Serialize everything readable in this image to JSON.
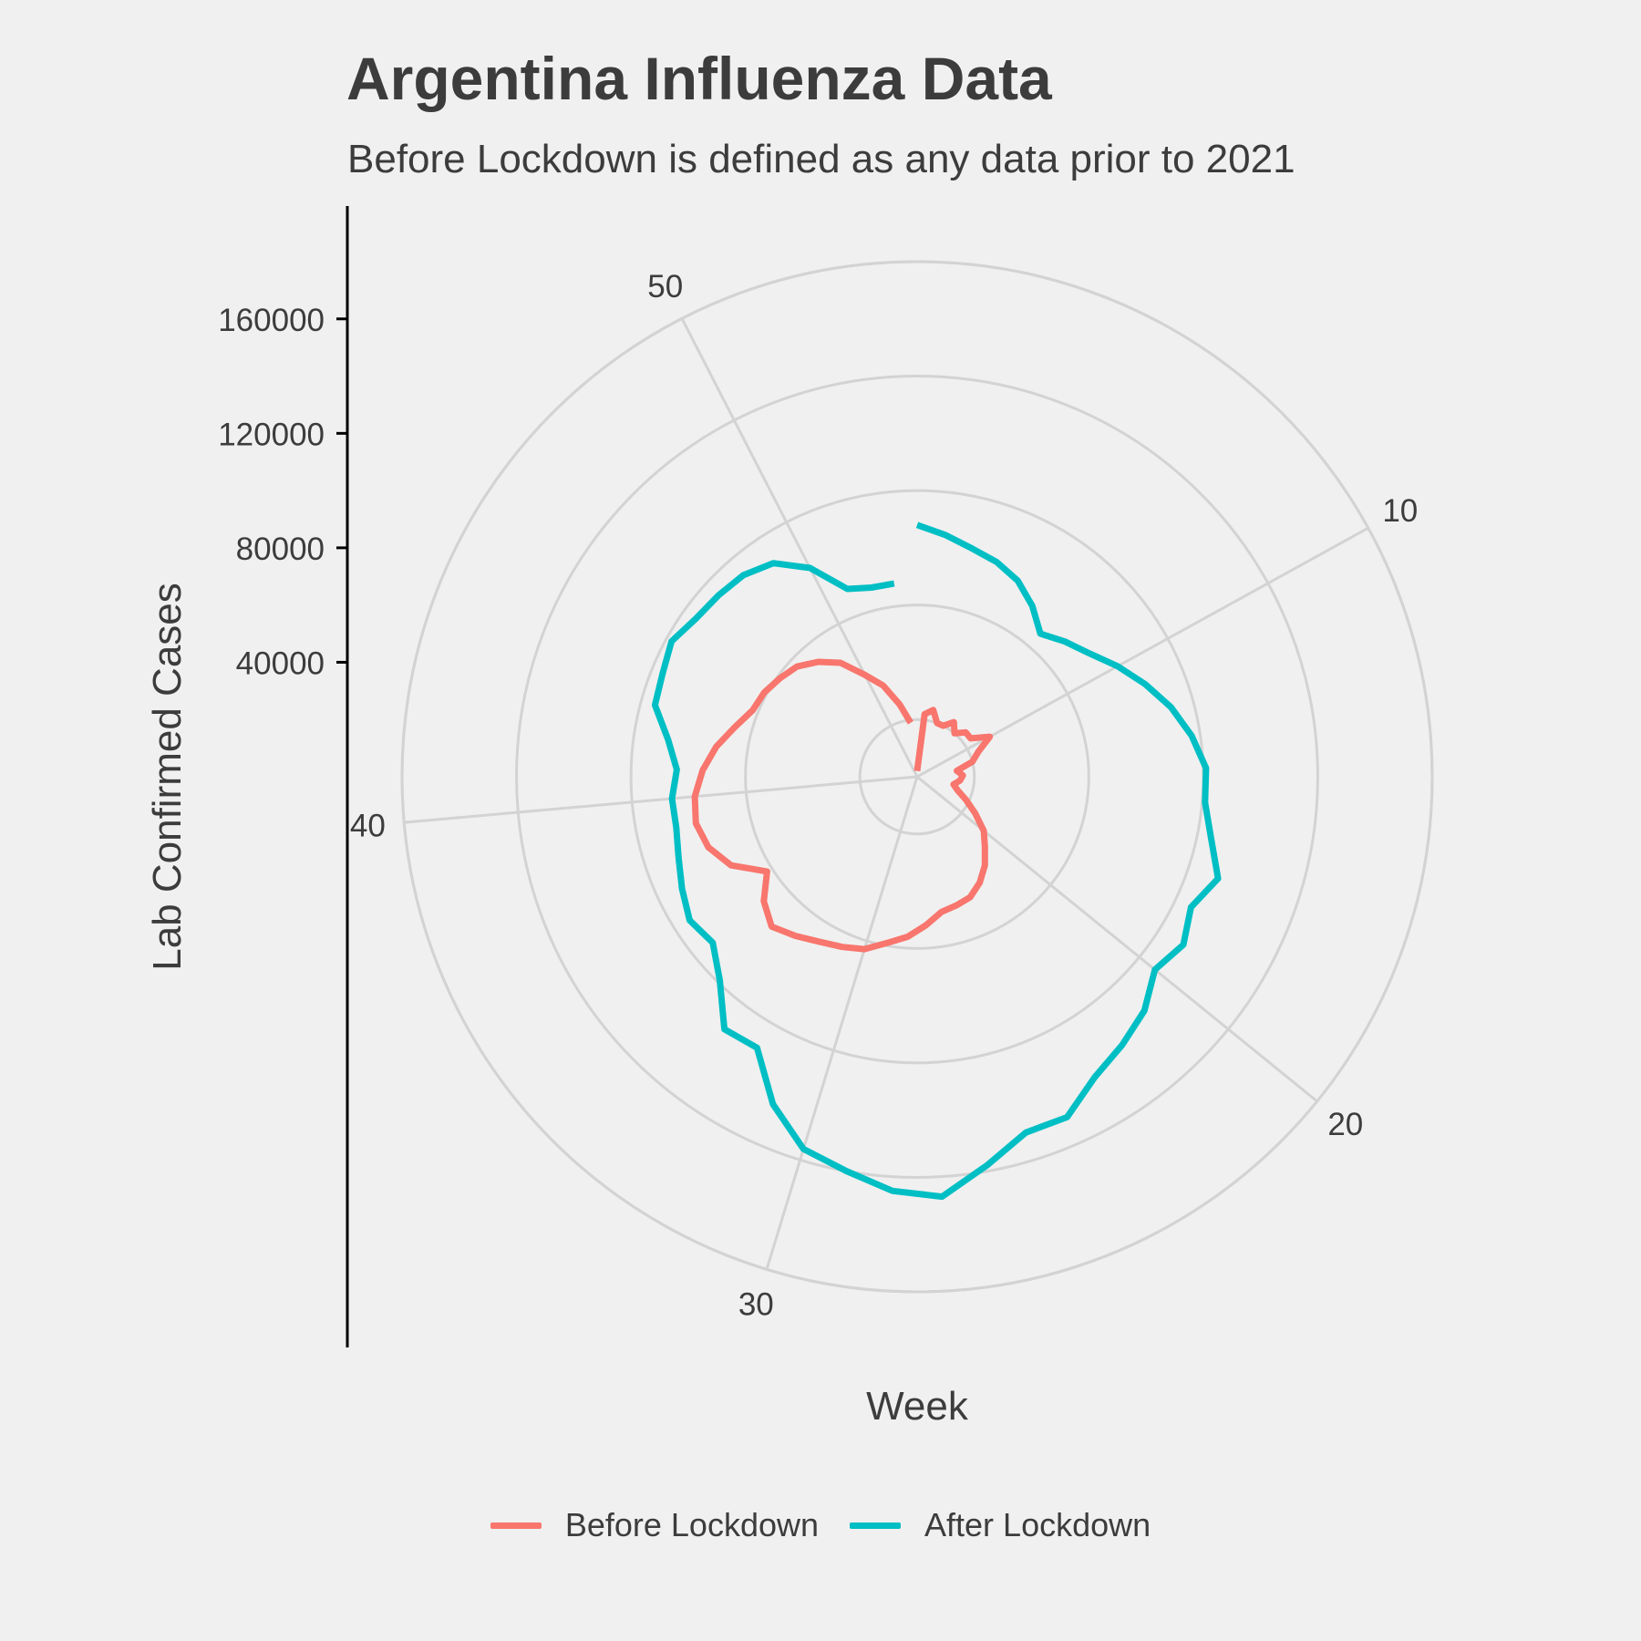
{
  "colors": {
    "background": "#F0F0F0",
    "grid": "#D3D3D3",
    "text": "#3C3C3C",
    "axis": "#000000"
  },
  "chart_data": {
    "type": "line",
    "coord": "polar",
    "title": "Argentina Influenza Data",
    "subtitle": "Before Lockdown is defined as any data prior to 2021",
    "xlabel": "Week",
    "ylabel": "Lab Confirmed Cases",
    "xlim": [
      1,
      53
    ],
    "ylim": [
      0,
      180000
    ],
    "x_ticks": [
      "10",
      "20",
      "30",
      "40",
      "50"
    ],
    "y_ticks": [
      "40000",
      "80000",
      "120000",
      "160000"
    ],
    "grid": true,
    "legend": {
      "position": "bottom"
    },
    "series": [
      {
        "name": "Before Lockdown",
        "color": "#F8766D",
        "values": [
          2000,
          22000,
          24000,
          20000,
          20000,
          23000,
          20000,
          23000,
          23000,
          29000,
          23000,
          20000,
          14000,
          16000,
          15000,
          13000,
          15000,
          19000,
          24000,
          30000,
          34000,
          39000,
          43000,
          46000,
          47000,
          48000,
          52000,
          56000,
          59000,
          63000,
          65000,
          67000,
          70000,
          73000,
          69000,
          62000,
          72000,
          77000,
          79000,
          78000,
          75000,
          71000,
          66000,
          62000,
          61000,
          59000,
          57000,
          53000,
          48000,
          40000,
          34000,
          26000,
          19000
        ]
      },
      {
        "name": "After Lockdown",
        "color": "#00BFC4",
        "values": [
          88000,
          85000,
          82000,
          80000,
          77000,
          72000,
          66000,
          70000,
          74000,
          80000,
          86000,
          92000,
          97000,
          101000,
          101000,
          105000,
          111000,
          106000,
          110000,
          107000,
          114000,
          118000,
          122000,
          130000,
          130000,
          138000,
          147000,
          145000,
          140000,
          136000,
          125000,
          110000,
          111000,
          99000,
          92000,
          94000,
          91000,
          88000,
          86000,
          86000,
          84000,
          88000,
          95000,
          96000,
          98000,
          95000,
          94000,
          93000,
          90000,
          82000,
          70000,
          68000,
          68000
        ]
      }
    ]
  }
}
